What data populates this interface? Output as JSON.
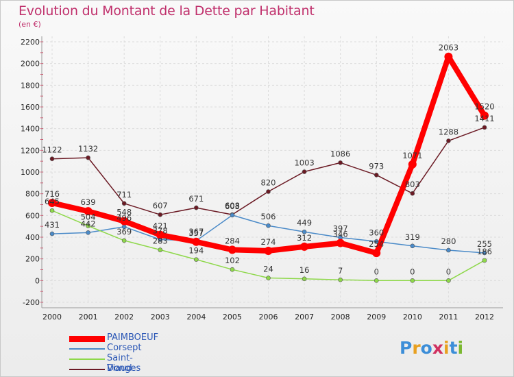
{
  "title": "Evolution du Montant de la Dette par Habitant",
  "subtitle": "(en €)",
  "logo_text": "Proxiti",
  "chart_data": {
    "type": "line",
    "title": "Evolution du Montant de la Dette par Habitant",
    "ylabel": "(en €)",
    "xlabel": "",
    "ylim": [
      -200,
      2200
    ],
    "yticks": [
      -200,
      0,
      200,
      400,
      600,
      800,
      1000,
      1200,
      1400,
      1600,
      1800,
      2000,
      2200
    ],
    "x": [
      "2000",
      "2001",
      "2002",
      "2003",
      "2004",
      "2005",
      "2006",
      "2007",
      "2008",
      "2009",
      "2010",
      "2011",
      "2012"
    ],
    "grid": true,
    "legend_position": "bottom-left",
    "series": [
      {
        "name": "PAIMBOEUF",
        "color": "#ff0000",
        "values": [
          716,
          639,
          548,
          421,
          357,
          284,
          274,
          312,
          346,
          254,
          1071,
          2063,
          1520
        ]
      },
      {
        "name": "Corsept",
        "color": "#4a8ac8",
        "values": [
          431,
          442,
          496,
          378,
          367,
          603,
          506,
          449,
          397,
          360,
          319,
          280,
          255
        ]
      },
      {
        "name": "Saint-Viaud",
        "color": "#8ed84a",
        "values": [
          645,
          504,
          369,
          283,
          194,
          102,
          24,
          16,
          7,
          0,
          0,
          0,
          186
        ]
      },
      {
        "name": "Donges",
        "color": "#6b1a24",
        "values": [
          1122,
          1132,
          711,
          607,
          671,
          608,
          820,
          1003,
          1086,
          973,
          803,
          1288,
          1411
        ]
      }
    ]
  }
}
